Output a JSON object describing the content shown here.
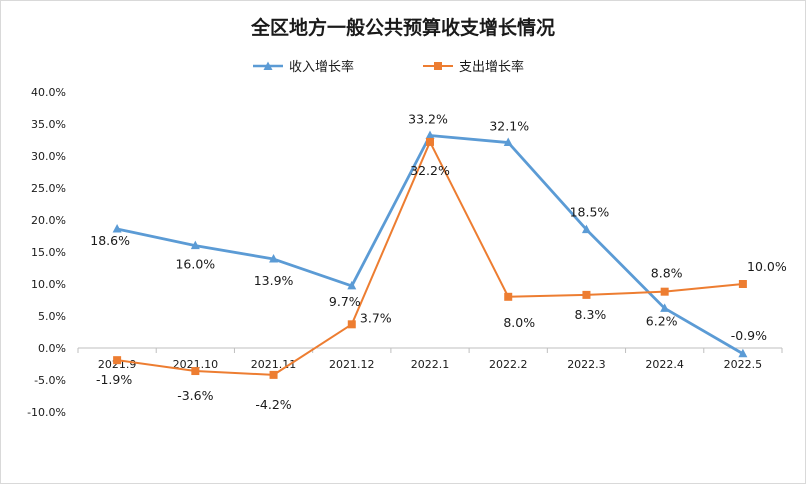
{
  "chart_data": {
    "type": "line",
    "title": "全区地方一般公共预算收支增长情况",
    "categories": [
      "2021.9",
      "2021.10",
      "2021.11",
      "2021.12",
      "2022.1",
      "2022.2",
      "2022.3",
      "2022.4",
      "2022.5"
    ],
    "series": [
      {
        "name": "收入增长率",
        "color": "#5b9bd5",
        "marker": "triangle",
        "values": [
          18.6,
          16.0,
          13.9,
          9.7,
          33.2,
          32.1,
          18.5,
          6.2,
          -0.9
        ],
        "labels": [
          "18.6%",
          "16.0%",
          "13.9%",
          "9.7%",
          "33.2%",
          "32.1%",
          "18.5%",
          "6.2%",
          "-0.9%"
        ]
      },
      {
        "name": "支出增长率",
        "color": "#ed7d31",
        "marker": "square",
        "values": [
          -1.9,
          -3.6,
          -4.2,
          3.7,
          32.2,
          8.0,
          8.3,
          8.8,
          10.0
        ],
        "labels": [
          "-1.9%",
          "-3.6%",
          "-4.2%",
          "3.7%",
          "32.2%",
          "8.0%",
          "8.3%",
          "8.8%",
          "10.0%"
        ]
      }
    ],
    "ylim": [
      -10,
      40
    ],
    "yticks": [
      40,
      35,
      30,
      25,
      20,
      15,
      10,
      5,
      0,
      -5,
      -10
    ],
    "ytick_labels": [
      "40.0%",
      "35.0%",
      "30.0%",
      "25.0%",
      "20.0%",
      "15.0%",
      "10.0%",
      "5.0%",
      "0.0%",
      "-5.0%",
      "-10.0%"
    ],
    "grid": false,
    "legend": "top-center",
    "xlabel": "",
    "ylabel": ""
  }
}
